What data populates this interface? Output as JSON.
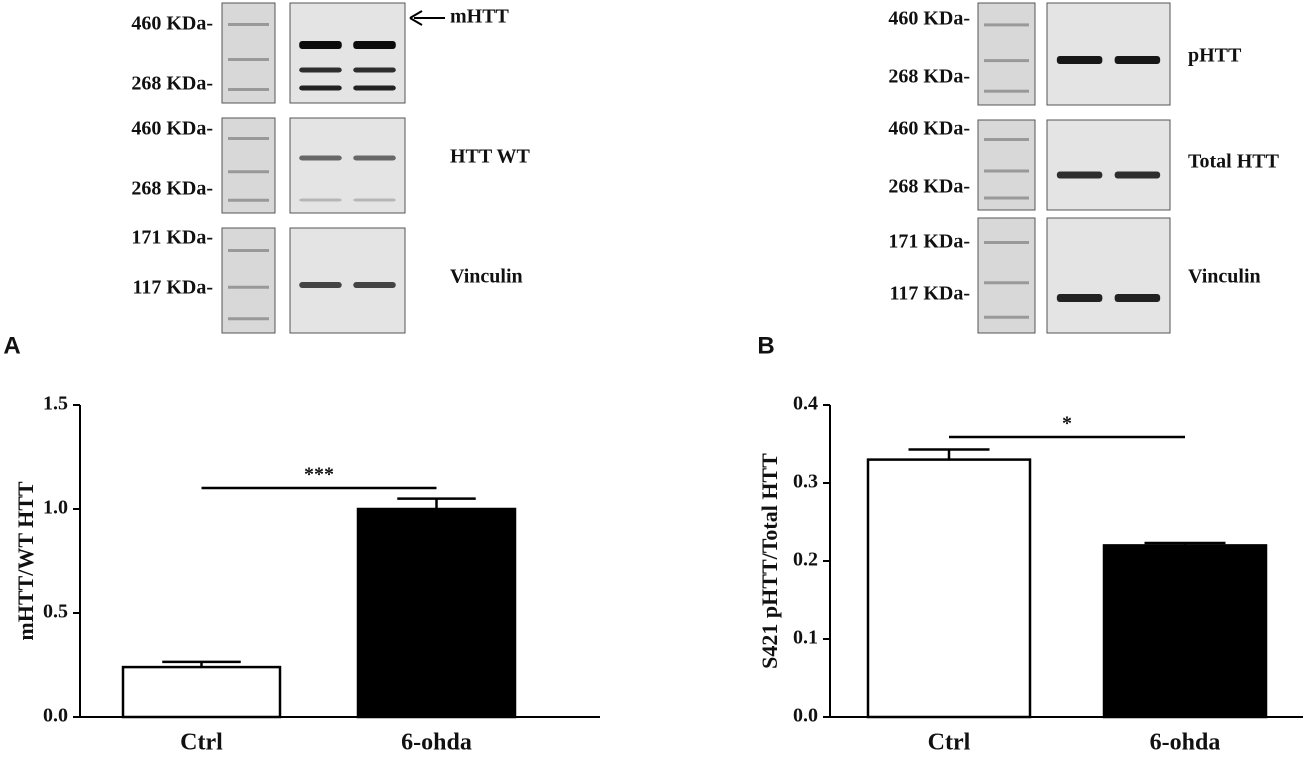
{
  "panels": [
    {
      "letter": "A",
      "blots": [
        {
          "markers": [
            "460 KDa-",
            "268 KDa-"
          ],
          "label": "mHTT"
        },
        {
          "markers": [
            "460 KDa-",
            "268 KDa-"
          ],
          "label": "HTT  WT"
        },
        {
          "markers": [
            "171 KDa-",
            "117 KDa-"
          ],
          "label": "Vinculin"
        }
      ]
    },
    {
      "letter": "B",
      "blots": [
        {
          "markers": [
            "460 KDa-",
            "268 KDa-"
          ],
          "label": "pHTT"
        },
        {
          "markers": [
            "460 KDa-",
            "268 KDa-"
          ],
          "label": "Total  HTT"
        },
        {
          "markers": [
            "171 KDa-",
            "117 KDa-"
          ],
          "label": "Vinculin"
        }
      ]
    }
  ],
  "chart_data": [
    {
      "type": "bar",
      "y_label": "mHTT/WT HTT",
      "categories": [
        "Ctrl",
        "6-ohda"
      ],
      "values": [
        0.24,
        1.0
      ],
      "errors": [
        0.025,
        0.05
      ],
      "colors": [
        "#ffffff",
        "#000000"
      ],
      "ylim": [
        0,
        1.5
      ],
      "yticks": [
        {
          "value": 0,
          "label": "0.0"
        },
        0.5,
        {
          "value": 1,
          "label": "1.0"
        },
        1.5
      ],
      "annotation": "***",
      "grid": false
    },
    {
      "type": "bar",
      "y_label": "S421 pHTT/Total  HTT",
      "categories": [
        "Ctrl",
        "6-ohda"
      ],
      "values": [
        0.33,
        0.22
      ],
      "errors": [
        0.013,
        0.003
      ],
      "colors": [
        "#ffffff",
        "#000000"
      ],
      "ylim": [
        0,
        0.4
      ],
      "yticks": [
        {
          "value": 0,
          "label": "0.0"
        },
        0.1,
        0.2,
        0.3,
        0.4
      ],
      "annotation": "*",
      "grid": false
    }
  ]
}
